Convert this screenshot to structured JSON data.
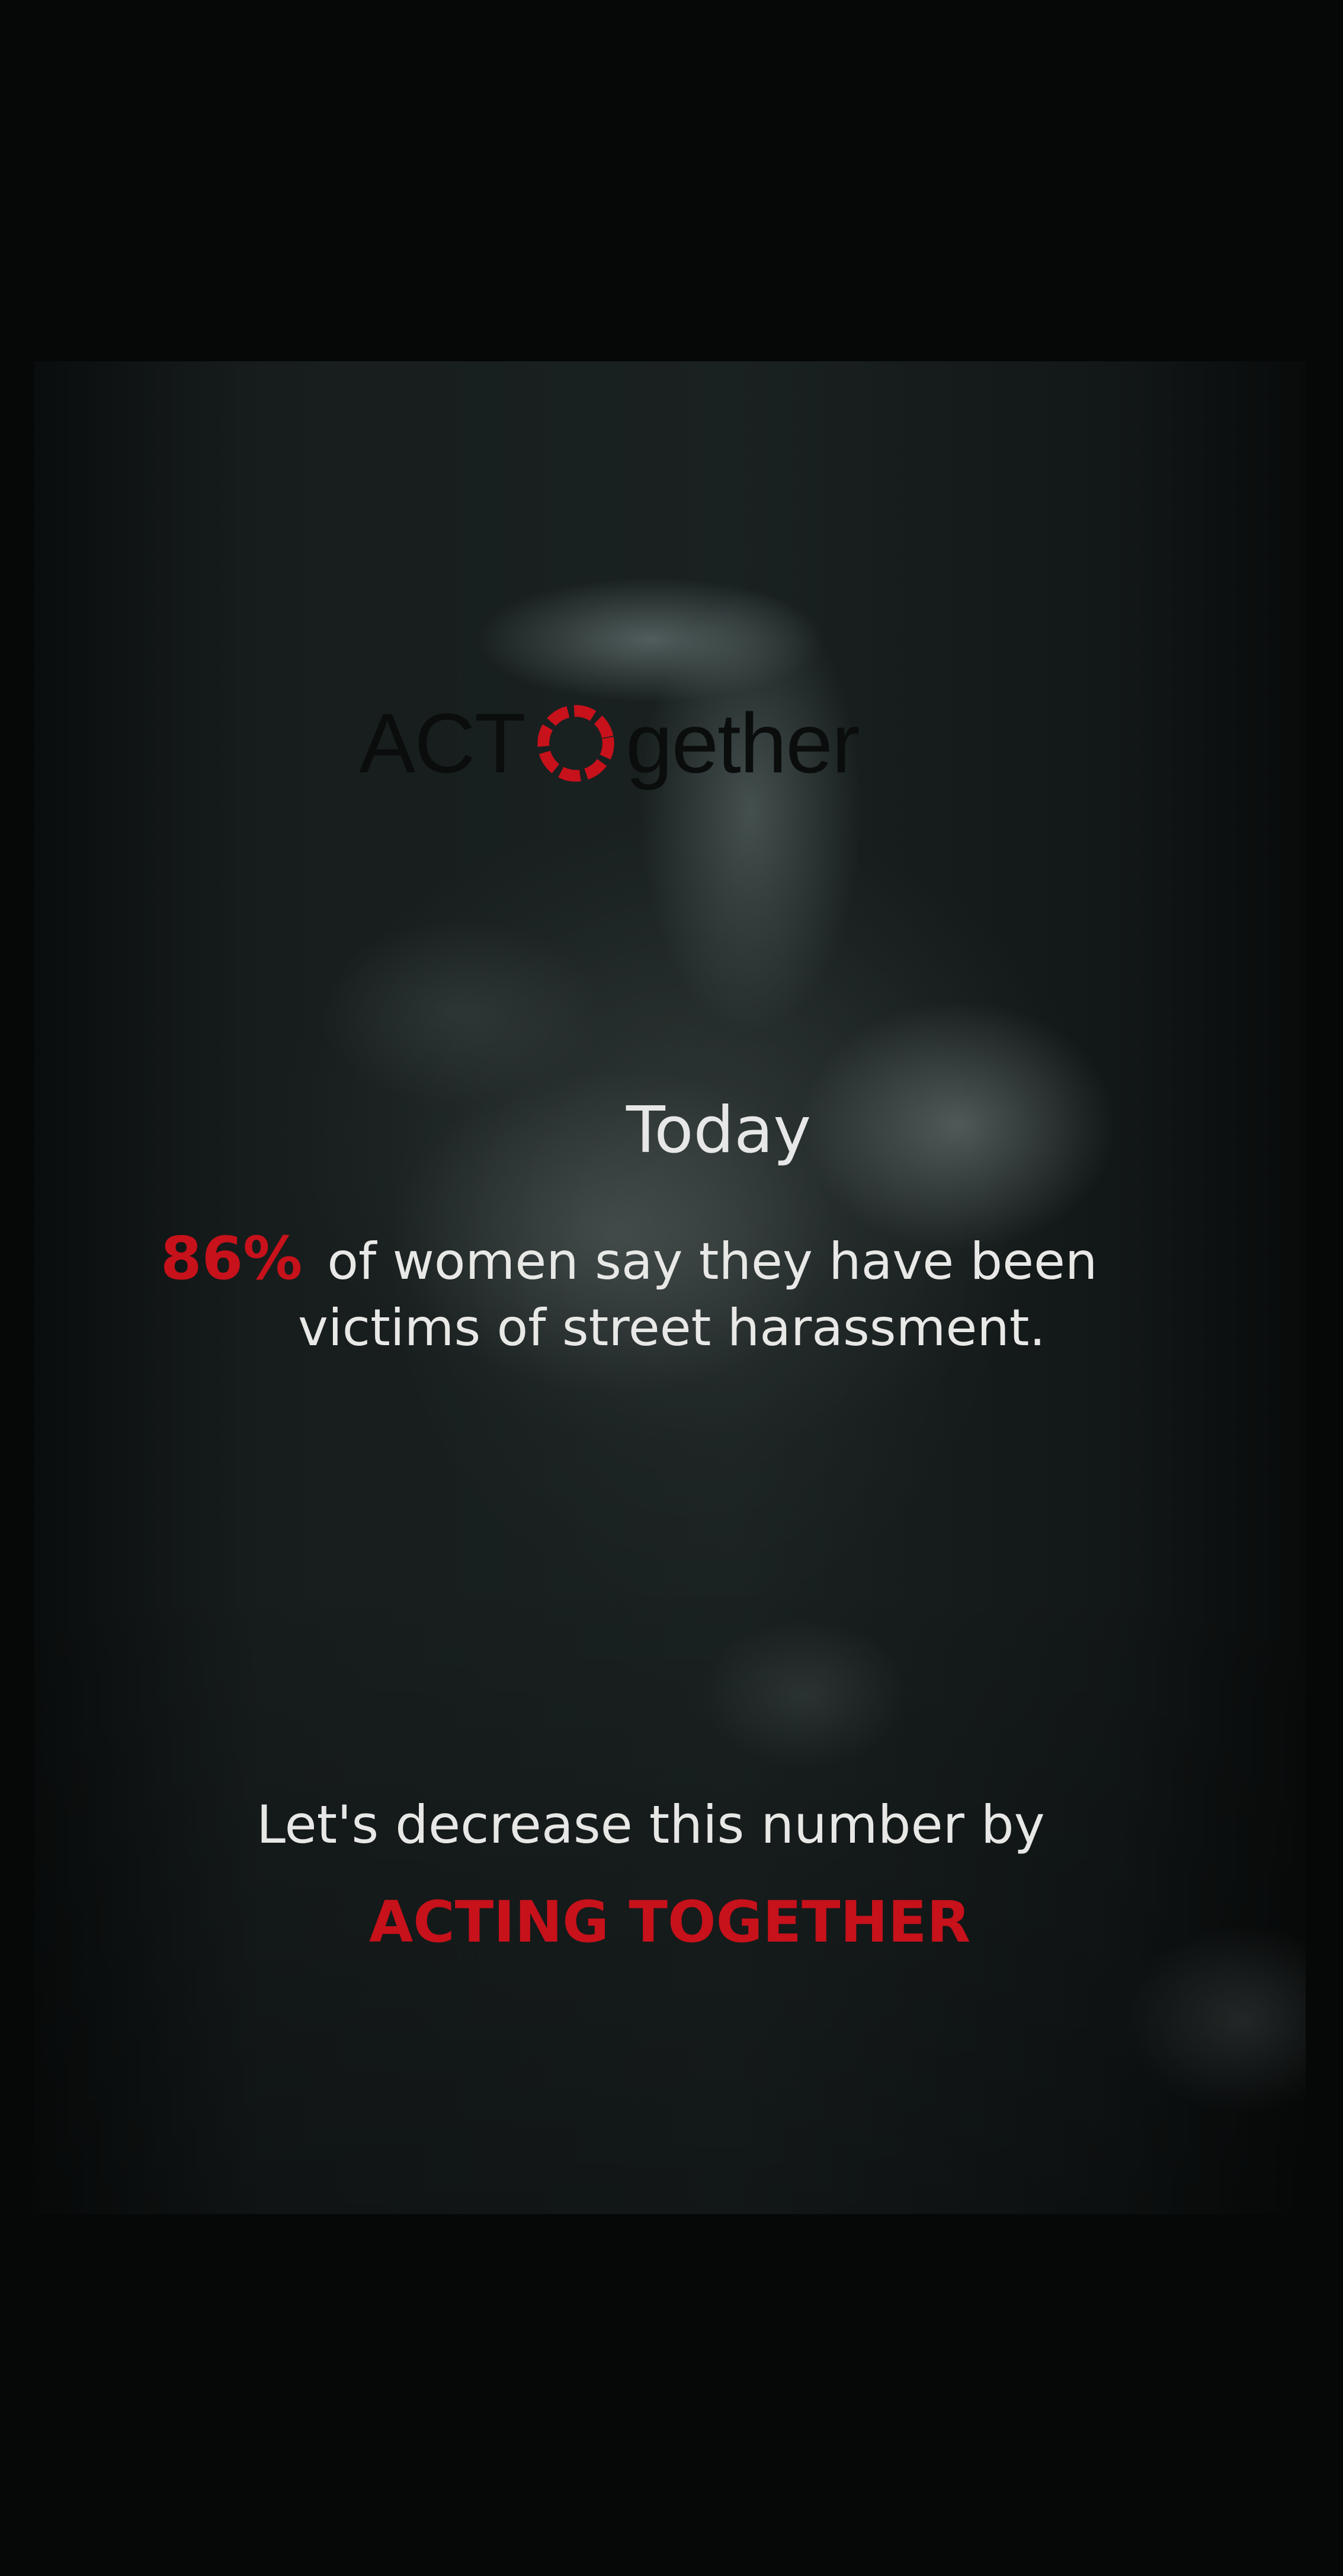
{
  "logo": {
    "part1": "ACT",
    "ring_icon": "dashed-circle-icon",
    "part2": "gether"
  },
  "headline": {
    "word": "Today"
  },
  "statistic": {
    "percent": "86%",
    "line1_rest": "of women say they have been",
    "line2": "victims of street harassment."
  },
  "call_to_action": {
    "text": "Let's decrease this number by",
    "highlight": "ACTING TOGETHER"
  },
  "colors": {
    "accent": "#c7111b",
    "text": "#e8e8e6",
    "background": "#050807"
  }
}
